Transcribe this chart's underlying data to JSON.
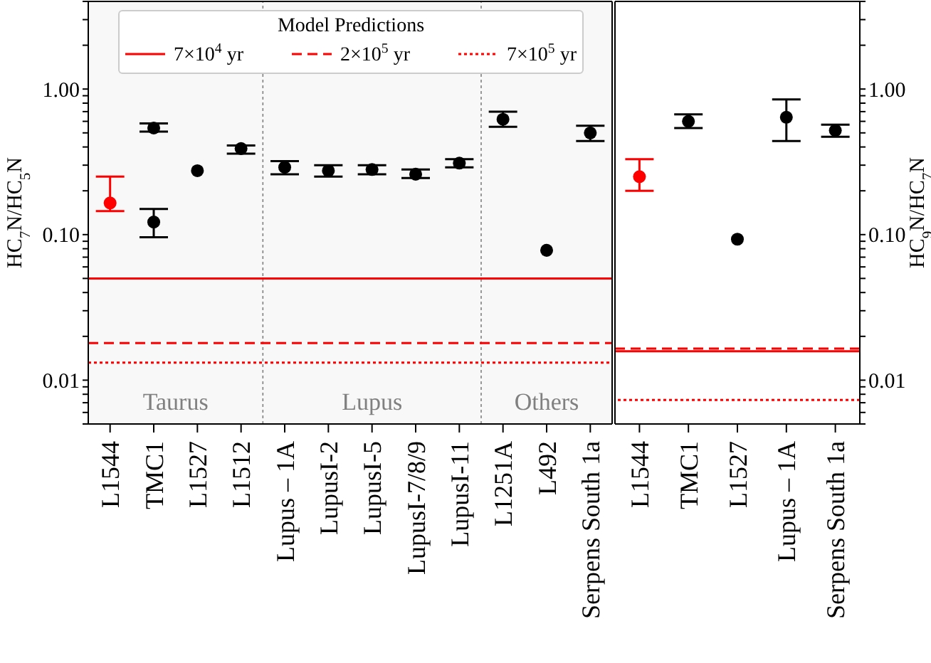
{
  "chart_data": [
    {
      "type": "scatter",
      "ylabel": "HC$_{7}$N/HC$_{5}$N",
      "legend_title": "Model Predictions",
      "legend": "top",
      "marker": "circle",
      "log": "y",
      "categories": [
        "L1544",
        "TMC1",
        "L1527",
        "L1512",
        "Lupus – 1A",
        "LupusI-2",
        "LupusI-5",
        "LupusI-7/8/9",
        "LupusI-11",
        "L1251A",
        "L492",
        "Serpens South 1a"
      ],
      "ylim": [
        0.005,
        4
      ],
      "yticks": [
        {
          "value": 0.005,
          "label": null
        },
        {
          "value": 0.006,
          "label": null
        },
        {
          "value": 0.007,
          "label": null
        },
        {
          "value": 0.008,
          "label": null
        },
        {
          "value": 0.009,
          "label": null
        },
        0.01,
        {
          "value": 0.02,
          "label": null
        },
        {
          "value": 0.03,
          "label": null
        },
        {
          "value": 0.04,
          "label": null
        },
        {
          "value": 0.05,
          "label": null
        },
        {
          "value": 0.06,
          "label": null
        },
        {
          "value": 0.07,
          "label": null
        },
        {
          "value": 0.08,
          "label": null
        },
        {
          "value": 0.09,
          "label": null
        },
        {
          "value": 0.1,
          "label": "0.10"
        },
        {
          "value": 0.2,
          "label": null
        },
        {
          "value": 0.3,
          "label": null
        },
        {
          "value": 0.4,
          "label": null
        },
        {
          "value": 0.5,
          "label": null
        },
        {
          "value": 0.6,
          "label": null
        },
        {
          "value": 0.7,
          "label": null
        },
        {
          "value": 0.8,
          "label": null
        },
        {
          "value": 0.9,
          "label": null
        },
        {
          "value": 1,
          "label": "1.00"
        },
        {
          "value": 2,
          "label": null
        },
        {
          "value": 3,
          "label": null
        },
        {
          "value": 4,
          "label": null
        }
      ],
      "series": [
        {
          "color": "#000000",
          "values": [
            null,
            0.54,
            0.275,
            0.39,
            0.29,
            0.275,
            0.28,
            0.26,
            0.31,
            0.62,
            0.078,
            0.5
          ],
          "errors": [
            null,
            [
              0.51,
              0.58
            ],
            null,
            [
              0.36,
              0.41
            ],
            [
              0.26,
              0.32
            ],
            [
              0.25,
              0.3
            ],
            [
              0.26,
              0.3
            ],
            [
              0.245,
              0.28
            ],
            [
              0.29,
              0.33
            ],
            [
              0.55,
              0.7
            ],
            null,
            [
              0.44,
              0.56
            ]
          ]
        },
        {
          "color": "#ff0000",
          "values": [
            0.165,
            null,
            null,
            null,
            null,
            null,
            null,
            null,
            null,
            null,
            null,
            null
          ],
          "errors": [
            [
              0.145,
              0.25
            ],
            null,
            null,
            null,
            null,
            null,
            null,
            null,
            null,
            null,
            null,
            null
          ]
        },
        {
          "color": "#000000",
          "values": [
            null,
            0.122,
            null,
            null,
            null,
            null,
            null,
            null,
            null,
            null,
            null,
            null
          ],
          "errors": [
            null,
            [
              0.096,
              0.15
            ],
            null,
            null,
            null,
            null,
            null,
            null,
            null,
            null,
            null,
            null
          ]
        }
      ],
      "ref_lines": [
        {
          "axis": "y",
          "value": 0.05,
          "label": "7×10$^{4}$ yr",
          "color": "#ff0000",
          "line_style": "solid"
        },
        {
          "axis": "y",
          "value": 0.018,
          "label": "2×10$^{5}$ yr",
          "color": "#ff0000",
          "line_style": "dashed"
        },
        {
          "axis": "y",
          "value": 0.0132,
          "label": "7×10$^{5}$ yr",
          "color": "#ff0000",
          "line_style": "dotted"
        }
      ],
      "bands": [
        {
          "axis": "x",
          "from": "L1544",
          "to": "L1512",
          "label": "Taurus",
          "color": "#808080"
        },
        {
          "axis": "x",
          "from": "Lupus – 1A",
          "to": "LupusI-11",
          "label": "Lupus",
          "color": "#808080"
        },
        {
          "axis": "x",
          "from": "L1251A",
          "to": "Serpens South 1a",
          "label": "Others",
          "color": "#808080"
        }
      ]
    },
    {
      "type": "scatter",
      "ylabel": "HC$_{9}$N/HC$_{7}$N",
      "marker": "circle",
      "log": "y",
      "categories": [
        "L1544",
        "TMC1",
        "L1527",
        "Lupus – 1A",
        "Serpens South 1a"
      ],
      "ylim": [
        0.005,
        4
      ],
      "yticks": [
        {
          "value": 0.005,
          "label": null
        },
        {
          "value": 0.006,
          "label": null
        },
        {
          "value": 0.007,
          "label": null
        },
        {
          "value": 0.008,
          "label": null
        },
        {
          "value": 0.009,
          "label": null
        },
        0.01,
        {
          "value": 0.02,
          "label": null
        },
        {
          "value": 0.03,
          "label": null
        },
        {
          "value": 0.04,
          "label": null
        },
        {
          "value": 0.05,
          "label": null
        },
        {
          "value": 0.06,
          "label": null
        },
        {
          "value": 0.07,
          "label": null
        },
        {
          "value": 0.08,
          "label": null
        },
        {
          "value": 0.09,
          "label": null
        },
        {
          "value": 0.1,
          "label": "0.10"
        },
        {
          "value": 0.2,
          "label": null
        },
        {
          "value": 0.3,
          "label": null
        },
        {
          "value": 0.4,
          "label": null
        },
        {
          "value": 0.5,
          "label": null
        },
        {
          "value": 0.6,
          "label": null
        },
        {
          "value": 0.7,
          "label": null
        },
        {
          "value": 0.8,
          "label": null
        },
        {
          "value": 0.9,
          "label": null
        },
        {
          "value": 1,
          "label": "1.00"
        },
        {
          "value": 2,
          "label": null
        },
        {
          "value": 3,
          "label": null
        },
        {
          "value": 4,
          "label": null
        }
      ],
      "series": [
        {
          "color": "#000000",
          "values": [
            null,
            0.6,
            0.093,
            0.64,
            0.52
          ],
          "errors": [
            null,
            [
              0.54,
              0.67
            ],
            null,
            [
              0.44,
              0.85
            ],
            [
              0.47,
              0.57
            ]
          ]
        },
        {
          "color": "#ff0000",
          "values": [
            0.25,
            null,
            null,
            null,
            null
          ],
          "errors": [
            [
              0.2,
              0.33
            ],
            null,
            null,
            null,
            null
          ]
        }
      ],
      "ref_lines": [
        {
          "axis": "y",
          "value": 0.0158,
          "color": "#ff0000",
          "line_style": "solid"
        },
        {
          "axis": "y",
          "value": 0.0165,
          "color": "#ff0000",
          "line_style": "dashed"
        },
        {
          "axis": "y",
          "value": 0.0073,
          "color": "#ff0000",
          "line_style": "dotted"
        }
      ]
    }
  ]
}
